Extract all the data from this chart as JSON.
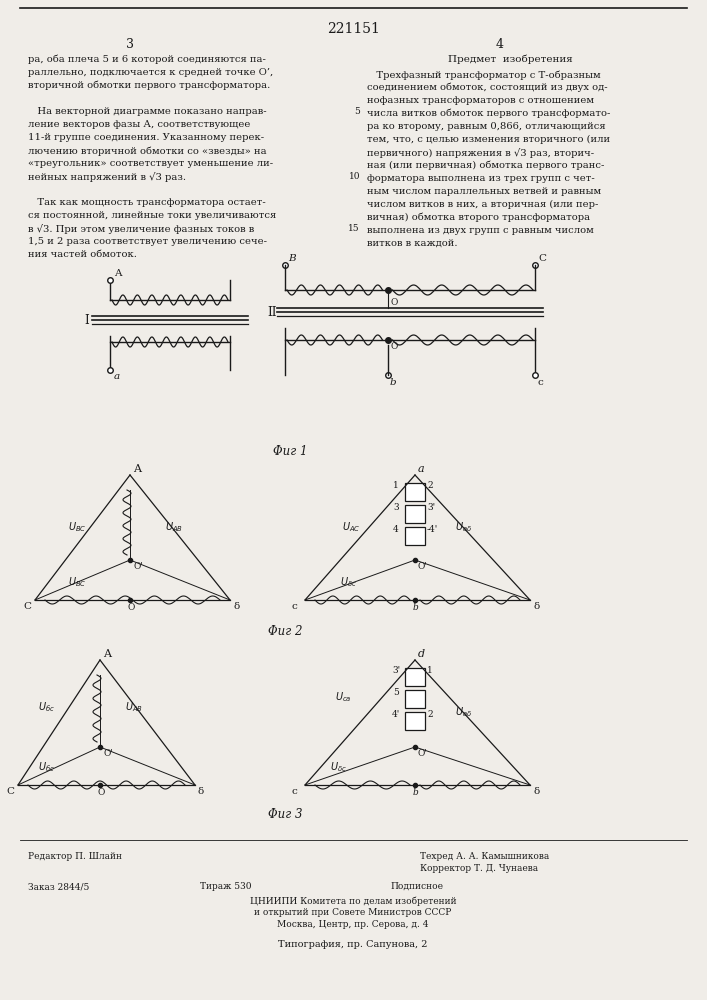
{
  "patent_number": "221151",
  "background_color": "#f0ede8",
  "text_color": "#1a1a1a",
  "col1_text": [
    "ра, оба плеча 5 и 6 которой соединяются па-",
    "раллельно, подключается к средней точке O’,",
    "вторичной обмотки первого трансформатора.",
    "",
    "   На векторной диаграмме показано направ-",
    "ление векторов фазы А, соответствующее",
    "11-й группе соединения. Указанному перек-",
    "лючению вторичной обмотки со «звезды» на",
    "«треугольник» соответствует уменьшение ли-",
    "нейных напряжений в √3 раз.",
    "",
    "   Так как мощность трансформатора остает-",
    "ся постоянной, линейные токи увеличиваются",
    "в √3. При этом увеличение фазных токов в",
    "1,5 и 2 раза соответствует увеличению сече-",
    "ния частей обмоток."
  ],
  "col2_header": "Предмет  изобретения",
  "col2_text": [
    "   Трехфазный трансформатор с Т-образным",
    "соединением обмоток, состоящий из двух од-",
    "нофазных трансформаторов с отношением",
    "числа витков обмоток первого трансформато-",
    "ра ко второму, равным 0,866, отличающийся",
    "тем, что, с целью изменения вторичного (или",
    "первичного) напряжения в √3 раз, вторич-",
    "ная (или первичная) обмотка первого транс-",
    "форматора выполнена из трех групп с чет-",
    "ным числом параллельных ветвей и равным",
    "числом витков в них, а вторичная (или пер-",
    "вичная) обмотка второго трансформатора",
    "выполнена из двух групп с равным числом",
    "витков в каждой."
  ],
  "fig1_label": "Φиг 1",
  "fig2_label": "Φиг 2",
  "fig3_label": "Φиг 3",
  "footer_left": "Редактор П. Шлайн",
  "footer_tech": "Техред А. А. Камышникова",
  "footer_corr": "Корректор Т. Д. Чунаева",
  "footer_order": "Заказ 2844/5",
  "footer_print": "Тираж 530",
  "footer_sub": "Подписное",
  "footer_org": "ЦНИИПИ Комитета по делам изобретений",
  "footer_org2": "и открытий при Совете Министров СССР",
  "footer_addr": "Москва, Центр, пр. Серова, д. 4",
  "footer_typ": "Типография, пр. Сапунова, 2"
}
